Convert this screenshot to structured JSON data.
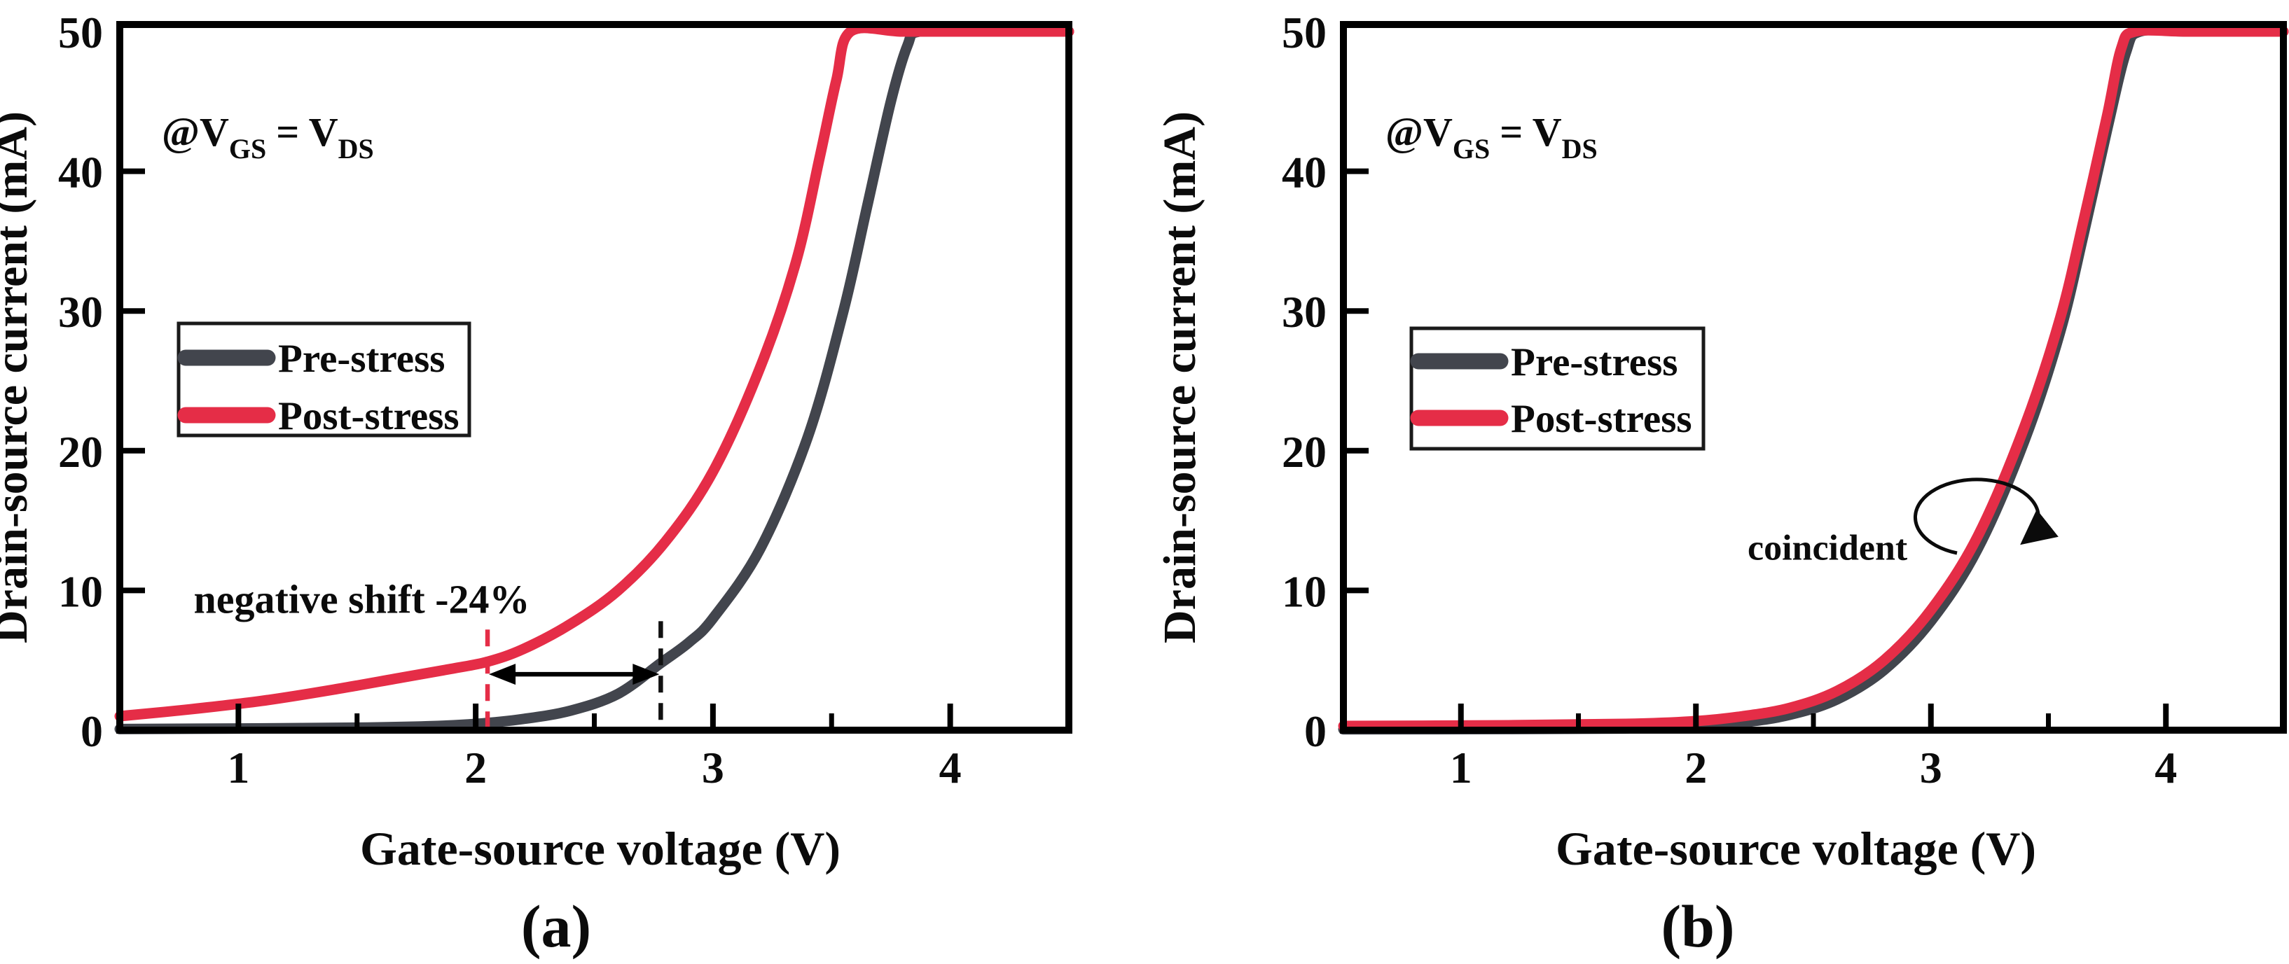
{
  "figure": {
    "condition": {
      "prefix": "@V",
      "sub_gs": "GS",
      "equals": "= V",
      "sub_ds": "DS"
    }
  },
  "chart_data": [
    {
      "type": "line",
      "panel_caption": "(a)",
      "xlabel": "Gate-source voltage (V)",
      "ylabel": "Drain-source current (mA)",
      "xlim": [
        0.5,
        4.5
      ],
      "ylim": [
        0,
        50
      ],
      "x_ticks": [
        1,
        2,
        3,
        4
      ],
      "x_minor_ticks": [
        1.5,
        2.5,
        3.5
      ],
      "y_ticks": [
        0,
        10,
        20,
        30,
        40,
        50
      ],
      "legend_position": "upper-left",
      "grid": false,
      "series": [
        {
          "name": "Pre-stress",
          "color": "#42454d",
          "points": [
            [
              0.5,
              0.08
            ],
            [
              1.0,
              0.12
            ],
            [
              1.5,
              0.18
            ],
            [
              1.8,
              0.28
            ],
            [
              2.0,
              0.45
            ],
            [
              2.2,
              0.8
            ],
            [
              2.4,
              1.4
            ],
            [
              2.6,
              2.6
            ],
            [
              2.78,
              4.8
            ],
            [
              2.9,
              6.3
            ],
            [
              3.0,
              8.0
            ],
            [
              3.2,
              13.0
            ],
            [
              3.4,
              21.0
            ],
            [
              3.55,
              30.0
            ],
            [
              3.65,
              37.5
            ],
            [
              3.75,
              45.0
            ],
            [
              3.82,
              49.0
            ],
            [
              3.87,
              50.0
            ],
            [
              4.1,
              50.0
            ],
            [
              4.5,
              50.0
            ]
          ]
        },
        {
          "name": "Post-stress",
          "color": "#e52d47",
          "points": [
            [
              0.5,
              1.0
            ],
            [
              0.8,
              1.5
            ],
            [
              1.1,
              2.1
            ],
            [
              1.4,
              2.9
            ],
            [
              1.7,
              3.8
            ],
            [
              1.9,
              4.4
            ],
            [
              2.05,
              4.9
            ],
            [
              2.2,
              5.8
            ],
            [
              2.4,
              7.6
            ],
            [
              2.6,
              10.0
            ],
            [
              2.8,
              13.5
            ],
            [
              3.0,
              18.5
            ],
            [
              3.2,
              26.0
            ],
            [
              3.35,
              33.5
            ],
            [
              3.45,
              41.0
            ],
            [
              3.52,
              46.5
            ],
            [
              3.58,
              50.0
            ],
            [
              3.8,
              50.0
            ],
            [
              4.1,
              50.0
            ],
            [
              4.5,
              50.0
            ]
          ]
        }
      ],
      "annotations": {
        "shift_label": {
          "text": "negative shift -24%",
          "color": "#e8202e",
          "x": 1.52,
          "y": 9.4
        },
        "red_dashed_x": 2.05,
        "black_dashed_x": 2.78,
        "arrow_y": 4.0
      }
    },
    {
      "type": "line",
      "panel_caption": "(b)",
      "xlabel": "Gate-source voltage (V)",
      "ylabel": "Drain-source current (mA)",
      "xlim": [
        0.5,
        4.5
      ],
      "ylim": [
        0,
        50
      ],
      "x_ticks": [
        1,
        2,
        3,
        4
      ],
      "x_minor_ticks": [
        1.5,
        2.5,
        3.5
      ],
      "y_ticks": [
        0,
        10,
        20,
        30,
        40,
        50
      ],
      "legend_position": "upper-left",
      "grid": false,
      "series": [
        {
          "name": "Pre-stress",
          "color": "#42454d",
          "points": [
            [
              0.5,
              0.06
            ],
            [
              1.2,
              0.08
            ],
            [
              1.7,
              0.12
            ],
            [
              2.0,
              0.25
            ],
            [
              2.2,
              0.55
            ],
            [
              2.4,
              1.1
            ],
            [
              2.6,
              2.2
            ],
            [
              2.8,
              4.3
            ],
            [
              3.0,
              7.8
            ],
            [
              3.2,
              13.0
            ],
            [
              3.4,
              20.8
            ],
            [
              3.55,
              28.5
            ],
            [
              3.65,
              35.5
            ],
            [
              3.75,
              43.0
            ],
            [
              3.83,
              48.5
            ],
            [
              3.89,
              50.0
            ],
            [
              4.1,
              50.0
            ],
            [
              4.5,
              50.0
            ]
          ]
        },
        {
          "name": "Post-stress",
          "color": "#e52d47",
          "points": [
            [
              0.5,
              0.3
            ],
            [
              1.2,
              0.35
            ],
            [
              1.7,
              0.45
            ],
            [
              2.0,
              0.65
            ],
            [
              2.2,
              1.0
            ],
            [
              2.4,
              1.6
            ],
            [
              2.6,
              2.8
            ],
            [
              2.8,
              5.0
            ],
            [
              3.0,
              8.6
            ],
            [
              3.2,
              13.9
            ],
            [
              3.4,
              21.8
            ],
            [
              3.55,
              29.5
            ],
            [
              3.65,
              36.5
            ],
            [
              3.75,
              44.0
            ],
            [
              3.81,
              48.8
            ],
            [
              3.87,
              50.0
            ],
            [
              4.1,
              50.0
            ],
            [
              4.5,
              50.0
            ]
          ]
        }
      ],
      "annotations": {
        "coincident_label": {
          "text": "coincident",
          "color": "#0b0b0b",
          "x": 2.56,
          "y": 12.2
        }
      }
    }
  ]
}
